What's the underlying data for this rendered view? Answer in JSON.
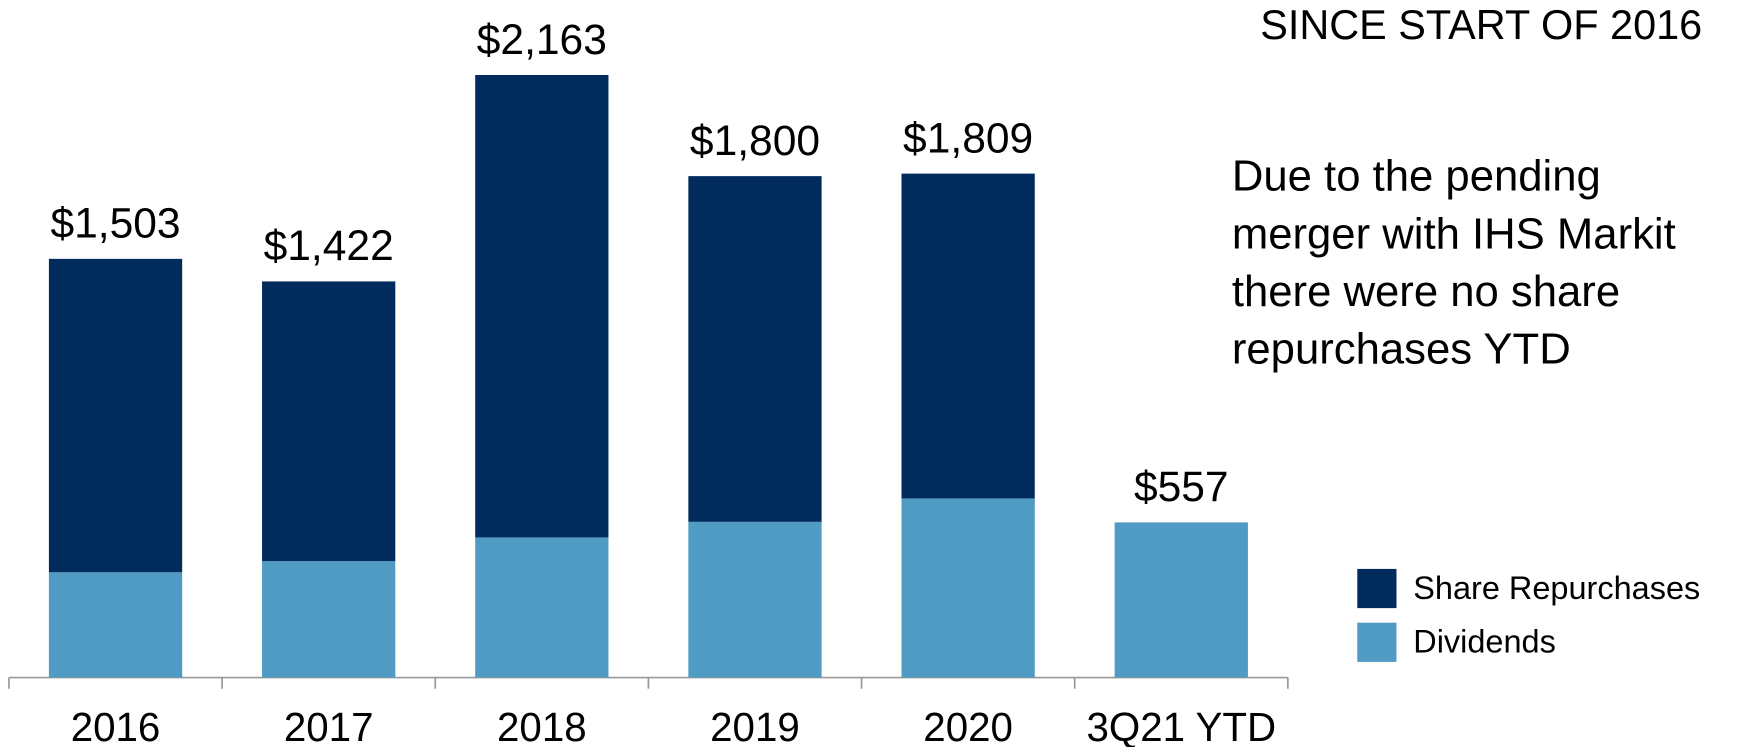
{
  "chart_data": {
    "type": "bar",
    "stacked": true,
    "title": "SINCE START OF 2016",
    "annotation": [
      "Due to the pending",
      "merger with IHS Markit",
      "there were no share",
      "repurchases YTD"
    ],
    "categories": [
      "2016",
      "2017",
      "2018",
      "2019",
      "2020",
      "3Q21 YTD"
    ],
    "series": [
      {
        "name": "Dividends",
        "color": "#4f9bc4",
        "values": [
          378,
          418,
          503,
          559,
          643,
          557
        ]
      },
      {
        "name": "Share Repurchases",
        "color": "#002b5c",
        "values": [
          1125,
          1004,
          1660,
          1241,
          1166,
          0
        ]
      }
    ],
    "total_labels": [
      "$1,503",
      "$1,422",
      "$2,163",
      "$1,800",
      "$1,809",
      "$557"
    ],
    "ylim": [
      0,
      2400
    ],
    "legend": "right"
  }
}
